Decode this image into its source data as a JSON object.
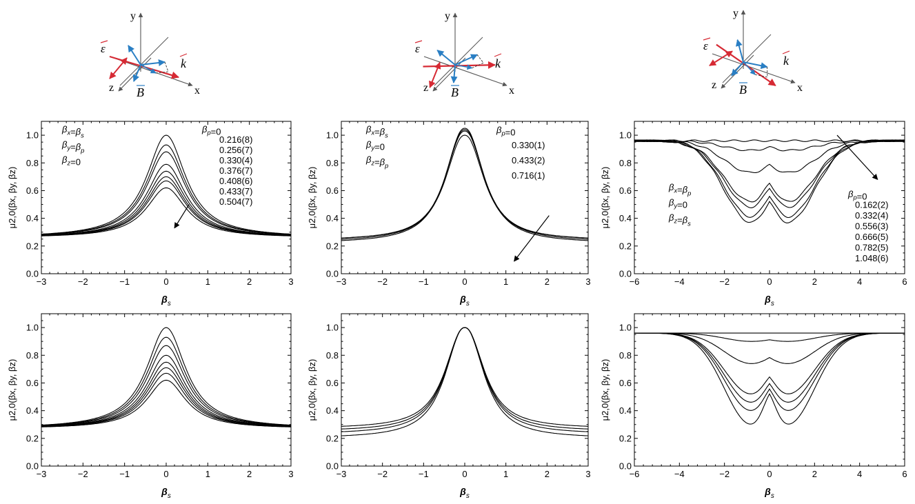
{
  "chart_data": [
    {
      "type": "line",
      "panel": "top-left",
      "xlabel_symbol": "β",
      "xlabel_sub": "s",
      "ylabel": "μ2,0(βx, βy, βz)",
      "xlim": [
        -3,
        3
      ],
      "ylim": [
        0,
        1.1
      ],
      "xticks": [
        "−3",
        "−2",
        "−1",
        "0",
        "1",
        "2",
        "3"
      ],
      "yticks": [
        "0.0",
        "0.2",
        "0.4",
        "0.6",
        "0.8",
        "1.0"
      ],
      "conditions": [
        "βx=βs",
        "βy=βp",
        "βz=0"
      ],
      "legend_header": "βp=0",
      "legend_values": [
        "0.216(8)",
        "0.256(7)",
        "0.330(4)",
        "0.376(7)",
        "0.408(6)",
        "0.433(7)",
        "0.504(7)"
      ],
      "series": [
        {
          "peak": 1.0,
          "wing_edge": 0.26
        },
        {
          "peak": 0.93,
          "wing_edge": 0.26
        },
        {
          "peak": 0.88,
          "wing_edge": 0.26
        },
        {
          "peak": 0.79,
          "wing_edge": 0.26
        },
        {
          "peak": 0.74,
          "wing_edge": 0.26
        },
        {
          "peak": 0.7,
          "wing_edge": 0.26
        },
        {
          "peak": 0.67,
          "wing_edge": 0.26
        },
        {
          "peak": 0.62,
          "wing_edge": 0.26
        }
      ]
    },
    {
      "type": "line",
      "panel": "top-middle",
      "xlabel_symbol": "β",
      "xlabel_sub": "s",
      "ylabel": "μ2,0(βx, βy, βz)",
      "xlim": [
        -3,
        3
      ],
      "ylim": [
        0,
        1.1
      ],
      "xticks": [
        "−3",
        "−2",
        "−1",
        "0",
        "1",
        "2",
        "3"
      ],
      "yticks": [
        "0.0",
        "0.2",
        "0.4",
        "0.6",
        "0.8",
        "1.0"
      ],
      "conditions": [
        "βx=βs",
        "βy=0",
        "βz=βp"
      ],
      "legend_header": "βp=0",
      "legend_values": [
        "0.330(1)",
        "0.433(2)",
        "0.716(1)"
      ],
      "series": [
        {
          "peak": 1.0,
          "wing_edge": 0.24
        },
        {
          "peak": 1.03,
          "wing_edge": 0.24
        },
        {
          "peak": 1.04,
          "wing_edge": 0.23
        },
        {
          "peak": 1.05,
          "wing_edge": 0.22
        }
      ]
    },
    {
      "type": "line",
      "panel": "top-right",
      "xlabel_symbol": "β",
      "xlabel_sub": "s",
      "ylabel": "μ2,0(βx, βy, βz)",
      "xlim": [
        -6,
        6
      ],
      "ylim": [
        0,
        1.1
      ],
      "xticks": [
        "−6",
        "−4",
        "−2",
        "0",
        "2",
        "4",
        "6"
      ],
      "yticks": [
        "0.0",
        "0.2",
        "0.4",
        "0.6",
        "0.8",
        "1.0"
      ],
      "conditions": [
        "βx=βp",
        "βy=0",
        "βz=βs"
      ],
      "legend_header": "βp=0",
      "legend_values": [
        "0.162(2)",
        "0.332(4)",
        "0.556(3)",
        "0.666(5)",
        "0.782(5)",
        "1.048(6)"
      ],
      "series": [
        {
          "center": 0.96,
          "dip_min": 0.96
        },
        {
          "center": 0.9,
          "dip_min": 0.89
        },
        {
          "center": 0.74,
          "dip_min": 0.73
        },
        {
          "center": 0.57,
          "dip_min": 0.52
        },
        {
          "center": 0.53,
          "dip_min": 0.48
        },
        {
          "center": 0.46,
          "dip_min": 0.41
        },
        {
          "center": 0.41,
          "dip_min": 0.37
        }
      ]
    },
    {
      "type": "line",
      "panel": "bottom-left",
      "xlabel_symbol": "β",
      "xlabel_sub": "s",
      "ylabel": "μ2,0(βx, βy, βz)",
      "xlim": [
        -3,
        3
      ],
      "ylim": [
        0,
        1.1
      ],
      "xticks": [
        "−3",
        "−2",
        "−1",
        "0",
        "1",
        "2",
        "3"
      ],
      "yticks": [
        "0.0",
        "0.2",
        "0.4",
        "0.6",
        "0.8",
        "1.0"
      ],
      "series": [
        {
          "peak": 1.0,
          "wing_edge": 0.27
        },
        {
          "peak": 0.93,
          "wing_edge": 0.27
        },
        {
          "peak": 0.87,
          "wing_edge": 0.27
        },
        {
          "peak": 0.8,
          "wing_edge": 0.27
        },
        {
          "peak": 0.75,
          "wing_edge": 0.27
        },
        {
          "peak": 0.71,
          "wing_edge": 0.27
        },
        {
          "peak": 0.67,
          "wing_edge": 0.27
        },
        {
          "peak": 0.62,
          "wing_edge": 0.27
        }
      ]
    },
    {
      "type": "line",
      "panel": "bottom-middle",
      "xlabel_symbol": "β",
      "xlabel_sub": "s",
      "ylabel": "μ2,0(βx, βy, βz)",
      "xlim": [
        -3,
        3
      ],
      "ylim": [
        0,
        1.1
      ],
      "xticks": [
        "−3",
        "−2",
        "−1",
        "0",
        "1",
        "2",
        "3"
      ],
      "yticks": [
        "0.0",
        "0.2",
        "0.4",
        "0.6",
        "0.8",
        "1.0"
      ],
      "series": [
        {
          "peak": 1.0,
          "wing_edge": 0.27
        },
        {
          "peak": 1.0,
          "wing_edge": 0.25
        },
        {
          "peak": 1.0,
          "wing_edge": 0.23
        },
        {
          "peak": 1.0,
          "wing_edge": 0.2
        }
      ]
    },
    {
      "type": "line",
      "panel": "bottom-right",
      "xlabel_symbol": "β",
      "xlabel_sub": "s",
      "ylabel": "μ2,0(βx, βy, βz)",
      "xlim": [
        -6,
        6
      ],
      "ylim": [
        0,
        1.1
      ],
      "xticks": [
        "−6",
        "−4",
        "−2",
        "0",
        "2",
        "4",
        "6"
      ],
      "yticks": [
        "0.0",
        "0.2",
        "0.4",
        "0.6",
        "0.8",
        "1.0"
      ],
      "series": [
        {
          "center": 0.96,
          "dip_min": 0.96
        },
        {
          "center": 0.9,
          "dip_min": 0.9
        },
        {
          "center": 0.74,
          "dip_min": 0.74
        },
        {
          "center": 0.56,
          "dip_min": 0.52
        },
        {
          "center": 0.5,
          "dip_min": 0.46
        },
        {
          "center": 0.45,
          "dip_min": 0.4
        },
        {
          "center": 0.4,
          "dip_min": 0.3
        }
      ]
    }
  ],
  "diagrams": [
    {
      "axis_y": "y",
      "axis_z": "z",
      "axis_x": "x",
      "vec_k": "k",
      "vec_e": "ε",
      "vec_b": "B"
    },
    {
      "axis_y": "y",
      "axis_z": "z",
      "axis_x": "x",
      "vec_k": "k",
      "vec_e": "ε",
      "vec_b": "B"
    },
    {
      "axis_y": "y",
      "axis_z": "z",
      "axis_x": "x",
      "vec_k": "k",
      "vec_e": "ε",
      "vec_b": "B"
    }
  ],
  "colors": {
    "red": "#d62a34",
    "blue": "#2a7fc4",
    "axis": "#555555",
    "line": "#000000"
  }
}
